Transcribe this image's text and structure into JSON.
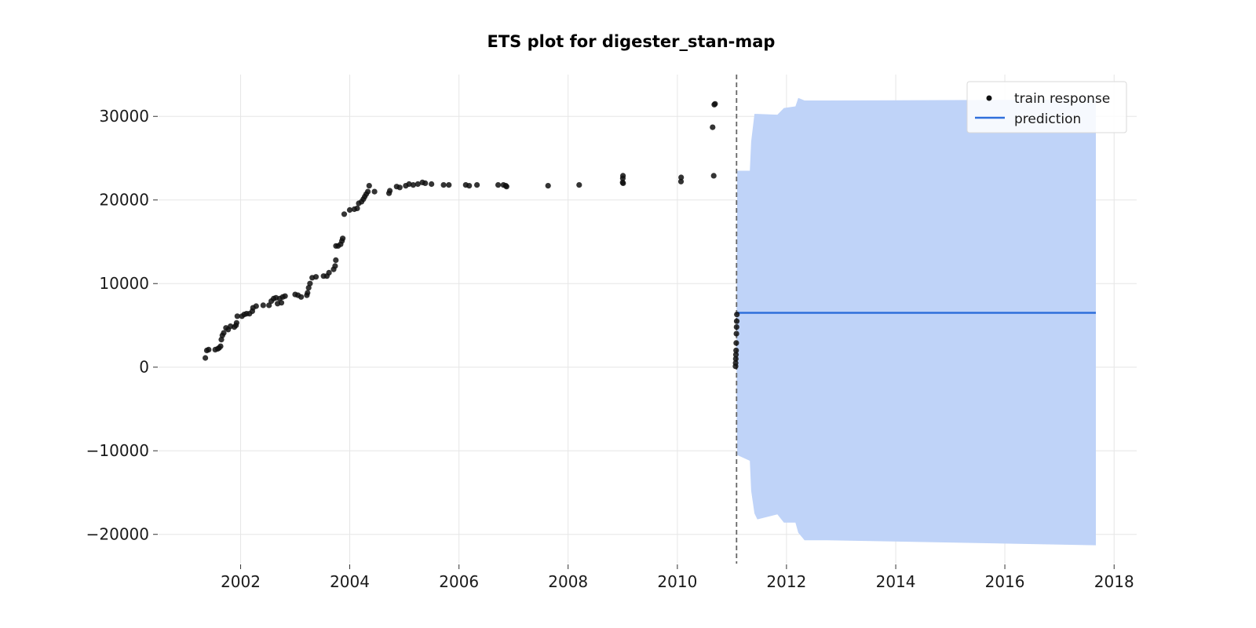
{
  "chart_data": {
    "type": "line",
    "title": "ETS plot for digester_stan-map",
    "xlabel": "",
    "ylabel": "",
    "x_axis": {
      "kind": "date",
      "range": [
        "2000-07-01",
        "2018-06-01"
      ],
      "ticks": [
        "2002",
        "2004",
        "2006",
        "2008",
        "2010",
        "2012",
        "2014",
        "2016",
        "2018"
      ]
    },
    "y_axis": {
      "range": [
        -23500,
        35000
      ],
      "ticks": [
        -20000,
        -10000,
        0,
        10000,
        20000,
        30000
      ],
      "tick_labels": [
        "−20000",
        "−10000",
        "0",
        "10000",
        "20000",
        "30000"
      ]
    },
    "grid": true,
    "legend": {
      "position": "top-right",
      "entries": [
        {
          "label": "train response",
          "marker": "dot"
        },
        {
          "label": "prediction",
          "marker": "line"
        }
      ]
    },
    "colors": {
      "train": "#111111",
      "prediction": "#2f6fdb",
      "band": "#bfd3f8",
      "vline": "#666666"
    },
    "cutoff_date": "2011-02-01",
    "series": [
      {
        "name": "train response",
        "kind": "scatter",
        "points": [
          [
            "2001-05-10",
            1100
          ],
          [
            "2001-05-20",
            2000
          ],
          [
            "2001-06-01",
            2100
          ],
          [
            "2001-07-15",
            2100
          ],
          [
            "2001-08-01",
            2200
          ],
          [
            "2001-08-10",
            2300
          ],
          [
            "2001-08-20",
            2500
          ],
          [
            "2001-08-25",
            3300
          ],
          [
            "2001-09-01",
            3800
          ],
          [
            "2001-09-10",
            4100
          ],
          [
            "2001-09-25",
            4700
          ],
          [
            "2001-10-10",
            4500
          ],
          [
            "2001-10-25",
            4900
          ],
          [
            "2001-11-20",
            4800
          ],
          [
            "2001-12-01",
            5000
          ],
          [
            "2001-12-05",
            5300
          ],
          [
            "2001-12-10",
            6100
          ],
          [
            "2002-01-10",
            6100
          ],
          [
            "2002-01-25",
            6300
          ],
          [
            "2002-02-10",
            6400
          ],
          [
            "2002-03-01",
            6400
          ],
          [
            "2002-03-20",
            6700
          ],
          [
            "2002-03-25",
            7100
          ],
          [
            "2002-04-15",
            7300
          ],
          [
            "2002-06-01",
            7400
          ],
          [
            "2002-07-10",
            7400
          ],
          [
            "2002-07-25",
            7900
          ],
          [
            "2002-08-10",
            8200
          ],
          [
            "2002-08-25",
            8300
          ],
          [
            "2002-09-05",
            7600
          ],
          [
            "2002-09-20",
            8200
          ],
          [
            "2002-10-01",
            7700
          ],
          [
            "2002-10-10",
            8400
          ],
          [
            "2002-10-25",
            8500
          ],
          [
            "2003-01-01",
            8700
          ],
          [
            "2003-01-20",
            8600
          ],
          [
            "2003-02-10",
            8400
          ],
          [
            "2003-03-20",
            8600
          ],
          [
            "2003-03-25",
            8900
          ],
          [
            "2003-04-01",
            9500
          ],
          [
            "2003-04-10",
            10000
          ],
          [
            "2003-04-25",
            10700
          ],
          [
            "2003-05-20",
            10800
          ],
          [
            "2003-07-10",
            10900
          ],
          [
            "2003-08-01",
            10900
          ],
          [
            "2003-08-15",
            11300
          ],
          [
            "2003-09-15",
            11700
          ],
          [
            "2003-09-25",
            12100
          ],
          [
            "2003-09-30",
            12800
          ],
          [
            "2003-10-01",
            14500
          ],
          [
            "2003-10-15",
            14500
          ],
          [
            "2003-11-01",
            14700
          ],
          [
            "2003-11-10",
            15100
          ],
          [
            "2003-11-15",
            15400
          ],
          [
            "2003-11-25",
            18300
          ],
          [
            "2004-01-01",
            18800
          ],
          [
            "2004-02-01",
            18900
          ],
          [
            "2004-02-20",
            19000
          ],
          [
            "2004-03-01",
            19600
          ],
          [
            "2004-03-20",
            19800
          ],
          [
            "2004-04-01",
            20100
          ],
          [
            "2004-04-10",
            20400
          ],
          [
            "2004-04-20",
            20700
          ],
          [
            "2004-05-01",
            21000
          ],
          [
            "2004-05-10",
            21700
          ],
          [
            "2004-06-15",
            21000
          ],
          [
            "2004-09-20",
            20800
          ],
          [
            "2004-09-25",
            21100
          ],
          [
            "2004-11-10",
            21600
          ],
          [
            "2004-12-01",
            21500
          ],
          [
            "2005-01-10",
            21700
          ],
          [
            "2005-02-01",
            21900
          ],
          [
            "2005-03-01",
            21800
          ],
          [
            "2005-04-01",
            21900
          ],
          [
            "2005-05-01",
            22100
          ],
          [
            "2005-05-20",
            22000
          ],
          [
            "2005-07-01",
            21900
          ],
          [
            "2005-09-20",
            21800
          ],
          [
            "2005-10-25",
            21800
          ],
          [
            "2006-02-15",
            21800
          ],
          [
            "2006-03-10",
            21700
          ],
          [
            "2006-05-01",
            21800
          ],
          [
            "2006-09-20",
            21800
          ],
          [
            "2006-10-25",
            21800
          ],
          [
            "2006-11-10",
            21700
          ],
          [
            "2006-11-15",
            21600
          ],
          [
            "2007-08-20",
            21700
          ],
          [
            "2008-03-15",
            21800
          ],
          [
            "2008-12-31",
            22100
          ],
          [
            "2009-01-01",
            22600
          ],
          [
            "2009-01-02",
            22900
          ],
          [
            "2009-01-03",
            22000
          ],
          [
            "2010-01-25",
            22200
          ],
          [
            "2010-01-26",
            22700
          ],
          [
            "2010-09-01",
            22900
          ],
          [
            "2010-08-25",
            28700
          ],
          [
            "2010-09-05",
            31400
          ],
          [
            "2010-09-10",
            31500
          ],
          [
            "2011-01-25",
            100
          ],
          [
            "2011-01-26",
            500
          ],
          [
            "2011-01-27",
            1000
          ],
          [
            "2011-01-28",
            1500
          ],
          [
            "2011-01-29",
            2000
          ],
          [
            "2011-01-30",
            2900
          ],
          [
            "2011-01-31",
            4000
          ],
          [
            "2011-02-01",
            4800
          ],
          [
            "2011-02-02",
            5500
          ],
          [
            "2011-02-03",
            6300
          ]
        ]
      },
      {
        "name": "prediction",
        "kind": "line",
        "points": [
          [
            "2011-02-01",
            6500
          ],
          [
            "2017-09-01",
            6500
          ]
        ]
      },
      {
        "name": "prediction interval",
        "kind": "band",
        "points": [
          [
            "2011-02-01",
            -5000,
            6500
          ],
          [
            "2011-02-05",
            -10500,
            23500
          ],
          [
            "2011-05-01",
            -11200,
            23500
          ],
          [
            "2011-05-10",
            -14800,
            27000
          ],
          [
            "2011-06-01",
            -17500,
            30300
          ],
          [
            "2011-06-20",
            -18200,
            30300
          ],
          [
            "2011-11-01",
            -17600,
            30200
          ],
          [
            "2011-12-15",
            -18600,
            31000
          ],
          [
            "2012-03-01",
            -18600,
            31200
          ],
          [
            "2012-03-20",
            -19800,
            32200
          ],
          [
            "2012-05-01",
            -20700,
            31900
          ],
          [
            "2012-10-01",
            -20700,
            31900
          ],
          [
            "2017-09-01",
            -21300,
            32000
          ]
        ]
      }
    ]
  }
}
